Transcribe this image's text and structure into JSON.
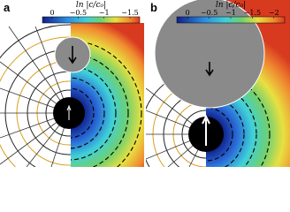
{
  "panels": [
    {
      "label": "a",
      "colorbar": {
        "title": "ln |c/c₀|",
        "ticks": [
          {
            "value": 0,
            "label": "0"
          },
          {
            "value": -0.5,
            "label": "−0.5"
          },
          {
            "value": -1,
            "label": "−1"
          },
          {
            "value": -1.5,
            "label": "−1.5"
          }
        ]
      }
    },
    {
      "label": "b",
      "colorbar": {
        "title": "ln |c/c₀|",
        "ticks": [
          {
            "value": 0,
            "label": "0"
          },
          {
            "value": -0.5,
            "label": "−0.5"
          },
          {
            "value": -1,
            "label": "−1"
          },
          {
            "value": -1.5,
            "label": "−1.5"
          },
          {
            "value": -2,
            "label": "−2"
          }
        ]
      }
    }
  ]
}
